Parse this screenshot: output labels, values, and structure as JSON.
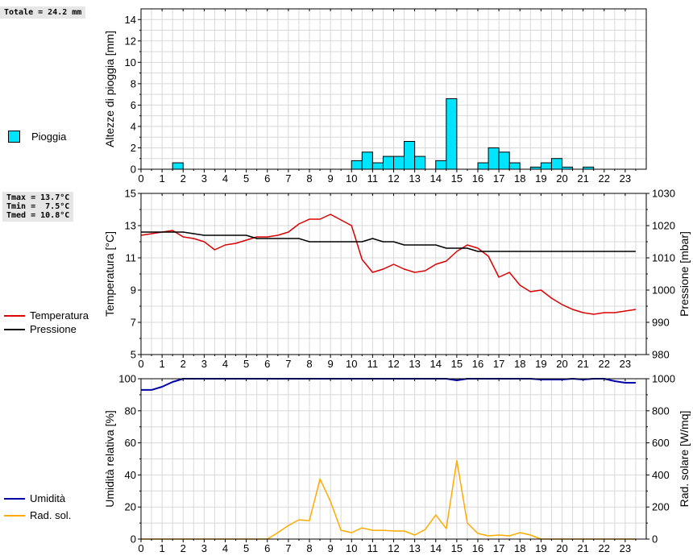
{
  "stats": {
    "total": "Totale = 24.2 mm",
    "temps": "Tmax = 13.7°C\nTmin =  7.5°C\nTmed = 10.8°C"
  },
  "legend": {
    "rain": "Pioggia",
    "temperature": "Temperatura",
    "pressure": "Pressione",
    "humidity": "Umidità",
    "solar": "Rad. sol."
  },
  "colors": {
    "rain_fill": "#00e5ff",
    "temperature": "#dd0000",
    "pressure": "#000000",
    "humidity": "#0000aa",
    "solar": "#ffaa00",
    "grid": "#d8d8d8"
  },
  "chart_data": [
    {
      "type": "bar",
      "ylabel": "Altezze di pioggia [mm]",
      "ylim": [
        0,
        15
      ],
      "yticks": [
        0,
        2,
        4,
        6,
        8,
        10,
        12,
        14
      ],
      "xlim": [
        0,
        24
      ],
      "xticks": [
        0,
        1,
        2,
        3,
        4,
        5,
        6,
        7,
        8,
        9,
        10,
        11,
        12,
        13,
        14,
        15,
        16,
        17,
        18,
        19,
        20,
        21,
        22,
        23
      ],
      "series": [
        {
          "name": "Pioggia",
          "x": [
            1.75,
            10.25,
            10.75,
            11.25,
            11.75,
            12.25,
            12.75,
            13.25,
            14.25,
            14.75,
            16.25,
            16.75,
            17.25,
            17.75,
            18.75,
            19.25,
            19.75,
            20.25,
            21.25
          ],
          "values": [
            0.6,
            0.8,
            1.6,
            0.6,
            1.2,
            1.2,
            2.6,
            1.2,
            0.8,
            6.6,
            0.6,
            2.0,
            1.6,
            0.6,
            0.2,
            0.6,
            1.0,
            0.2,
            0.2
          ]
        }
      ]
    },
    {
      "type": "line",
      "ylabel": "Temperatura [°C]",
      "y2label": "Pressione [mbar]",
      "ylim": [
        5,
        15
      ],
      "yticks": [
        5,
        7,
        9,
        11,
        13,
        15
      ],
      "y2lim": [
        980,
        1030
      ],
      "y2ticks": [
        980,
        990,
        1000,
        1010,
        1020,
        1030
      ],
      "xlim": [
        0,
        24
      ],
      "xticks": [
        0,
        1,
        2,
        3,
        4,
        5,
        6,
        7,
        8,
        9,
        10,
        11,
        12,
        13,
        14,
        15,
        16,
        17,
        18,
        19,
        20,
        21,
        22,
        23
      ],
      "series": [
        {
          "name": "Temperatura",
          "axis": "left",
          "x": [
            0,
            0.5,
            1,
            1.5,
            2,
            2.5,
            3,
            3.5,
            4,
            4.5,
            5,
            5.5,
            6,
            6.5,
            7,
            7.5,
            8,
            8.5,
            9,
            9.5,
            10,
            10.5,
            11,
            11.5,
            12,
            12.5,
            13,
            13.5,
            14,
            14.5,
            15,
            15.5,
            16,
            16.5,
            17,
            17.5,
            18,
            18.5,
            19,
            19.5,
            20,
            20.5,
            21,
            21.5,
            22,
            22.5,
            23,
            23.5
          ],
          "values": [
            12.4,
            12.5,
            12.6,
            12.7,
            12.3,
            12.2,
            12.0,
            11.5,
            11.8,
            11.9,
            12.1,
            12.3,
            12.3,
            12.4,
            12.6,
            13.1,
            13.4,
            13.4,
            13.7,
            13.35,
            13.0,
            10.9,
            10.1,
            10.3,
            10.6,
            10.3,
            10.1,
            10.2,
            10.6,
            10.8,
            11.4,
            11.8,
            11.6,
            11.1,
            9.8,
            10.1,
            9.3,
            8.9,
            9.0,
            8.5,
            8.1,
            7.8,
            7.6,
            7.5,
            7.6,
            7.6,
            7.7,
            7.8
          ]
        },
        {
          "name": "Pressione",
          "axis": "right",
          "x": [
            0,
            0.5,
            1,
            1.5,
            2,
            2.5,
            3,
            3.5,
            4,
            4.5,
            5,
            5.5,
            6,
            6.5,
            7,
            7.5,
            8,
            8.5,
            9,
            9.5,
            10,
            10.5,
            11,
            11.5,
            12,
            12.5,
            13,
            13.5,
            14,
            14.5,
            15,
            15.5,
            16,
            16.5,
            17,
            17.5,
            18,
            18.5,
            19,
            19.5,
            20,
            20.5,
            21,
            21.5,
            22,
            22.5,
            23,
            23.5
          ],
          "values": [
            1018,
            1018,
            1018,
            1018,
            1018,
            1017.5,
            1017,
            1017,
            1017,
            1017,
            1017,
            1016,
            1016,
            1016,
            1016,
            1016,
            1015,
            1015,
            1015,
            1015,
            1015,
            1015,
            1016,
            1015,
            1015,
            1014,
            1014,
            1014,
            1014,
            1013,
            1013,
            1013,
            1012,
            1012,
            1012,
            1012,
            1012,
            1012,
            1012,
            1012,
            1012,
            1012,
            1012,
            1012,
            1012,
            1012,
            1012,
            1012
          ]
        }
      ]
    },
    {
      "type": "line",
      "ylabel": "Umidità relativa [%]",
      "y2label": "Rad. solare [W/mq]",
      "ylim": [
        0,
        100
      ],
      "yticks": [
        0,
        20,
        40,
        60,
        80,
        100
      ],
      "y2lim": [
        0,
        1000
      ],
      "y2ticks": [
        0,
        200,
        400,
        600,
        800,
        1000
      ],
      "xlim": [
        0,
        24
      ],
      "xticks": [
        0,
        1,
        2,
        3,
        4,
        5,
        6,
        7,
        8,
        9,
        10,
        11,
        12,
        13,
        14,
        15,
        16,
        17,
        18,
        19,
        20,
        21,
        22,
        23
      ],
      "series": [
        {
          "name": "Umidità",
          "axis": "left",
          "x": [
            0,
            0.5,
            1,
            1.5,
            2,
            2.5,
            3,
            3.5,
            4,
            4.5,
            5,
            5.5,
            6,
            6.5,
            7,
            7.5,
            8,
            8.5,
            9,
            9.5,
            10,
            10.5,
            11,
            11.5,
            12,
            12.5,
            13,
            13.5,
            14,
            14.5,
            15,
            15.5,
            16,
            16.5,
            17,
            17.5,
            18,
            18.5,
            19,
            19.5,
            20,
            20.5,
            21,
            21.5,
            22,
            22.5,
            23,
            23.5
          ],
          "values": [
            93,
            93,
            95,
            98,
            100,
            100,
            100,
            100,
            100,
            100,
            100,
            100,
            100,
            100,
            100,
            100,
            100,
            100,
            100,
            100,
            100,
            100,
            100,
            100,
            100,
            100,
            100,
            100,
            100,
            100,
            99,
            100,
            100,
            100,
            100,
            100,
            100,
            100,
            99.5,
            99.5,
            99.5,
            100,
            99.5,
            100,
            100,
            98.5,
            97.5,
            97.5
          ]
        },
        {
          "name": "Rad. sol.",
          "axis": "right",
          "x": [
            0,
            0.5,
            1,
            1.5,
            2,
            2.5,
            3,
            3.5,
            4,
            4.5,
            5,
            5.5,
            6,
            6.5,
            7,
            7.5,
            8,
            8.5,
            9,
            9.5,
            10,
            10.5,
            11,
            11.5,
            12,
            12.5,
            13,
            13.5,
            14,
            14.5,
            15,
            15.5,
            16,
            16.5,
            17,
            17.5,
            18,
            18.5,
            19,
            19.5,
            20,
            20.5,
            21,
            21.5,
            22,
            22.5,
            23,
            23.5
          ],
          "values": [
            0,
            0,
            0,
            0,
            0,
            0,
            0,
            0,
            0,
            0,
            0,
            0,
            0,
            40,
            85,
            120,
            115,
            375,
            235,
            55,
            40,
            70,
            55,
            55,
            50,
            50,
            25,
            60,
            150,
            65,
            490,
            100,
            35,
            20,
            25,
            20,
            40,
            25,
            0,
            0,
            0,
            0,
            0,
            0,
            0,
            0,
            0,
            0
          ]
        }
      ]
    }
  ]
}
